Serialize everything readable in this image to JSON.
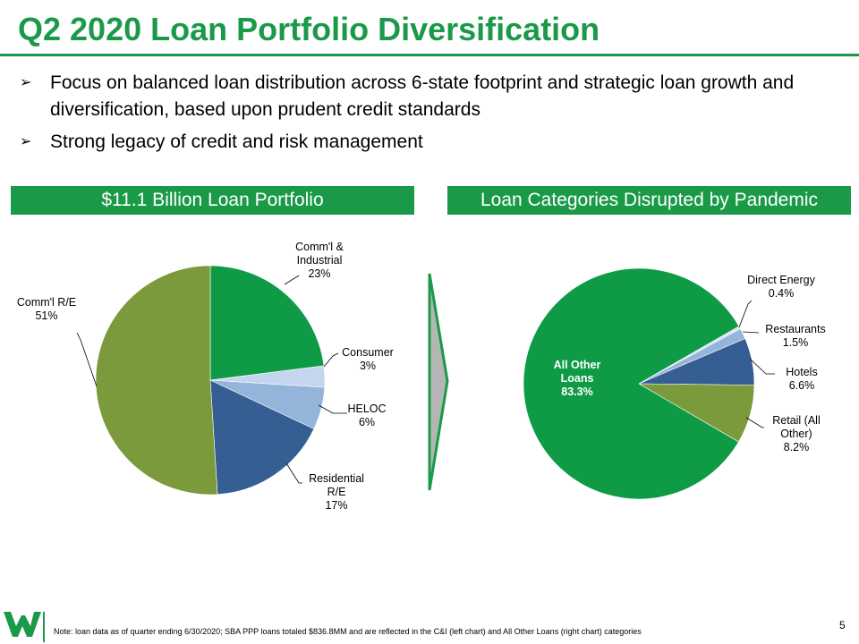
{
  "header": {
    "title": "Q2 2020 Loan Portfolio Diversification",
    "bullets": [
      "Focus on balanced loan distribution across 6-state footprint and strategic loan growth and diversification, based upon prudent credit standards",
      "Strong legacy of credit and risk management"
    ]
  },
  "panels": {
    "left_title": "$11.1 Billion Loan Portfolio",
    "right_title": "Loan Categories Disrupted by Pandemic"
  },
  "chart_data": [
    {
      "type": "pie",
      "title": "$11.1 Billion Loan Portfolio",
      "slices": [
        {
          "label_lines": [
            "Comm'l &",
            "Industrial"
          ],
          "value_label": "23%",
          "value": 23,
          "color": "#0f9b45"
        },
        {
          "label_lines": [
            "Consumer"
          ],
          "value_label": "3%",
          "value": 3,
          "color": "#c3d6ee"
        },
        {
          "label_lines": [
            "HELOC"
          ],
          "value_label": "6%",
          "value": 6,
          "color": "#94b4da"
        },
        {
          "label_lines": [
            "Residential",
            "R/E"
          ],
          "value_label": "17%",
          "value": 17,
          "color": "#355f93"
        },
        {
          "label_lines": [
            "Comm'l R/E"
          ],
          "value_label": "51%",
          "value": 51,
          "color": "#7a9a3c"
        }
      ]
    },
    {
      "type": "pie",
      "title": "Loan Categories Disrupted by Pandemic",
      "slices": [
        {
          "label_lines": [
            "Direct Energy"
          ],
          "value_label": "0.4%",
          "value": 0.4,
          "color": "#d6e3f1"
        },
        {
          "label_lines": [
            "Restaurants"
          ],
          "value_label": "1.5%",
          "value": 1.5,
          "color": "#94b4da"
        },
        {
          "label_lines": [
            "Hotels"
          ],
          "value_label": "6.6%",
          "value": 6.6,
          "color": "#355f93"
        },
        {
          "label_lines": [
            "Retail (All",
            "Other)"
          ],
          "value_label": "8.2%",
          "value": 8.2,
          "color": "#7a9a3c"
        },
        {
          "label_lines": [
            "All Other",
            "Loans"
          ],
          "value_label": "83.3%",
          "value": 83.3,
          "color": "#0f9b45"
        }
      ]
    }
  ],
  "footer": {
    "note": "Note: loan data as of quarter ending 6/30/2020; SBA PPP loans totaled $836.8MM and are reflected in the C&I (left chart) and All Other Loans (right chart) categories",
    "page_number": "5",
    "logo_icon": "bank-logo-icon"
  }
}
